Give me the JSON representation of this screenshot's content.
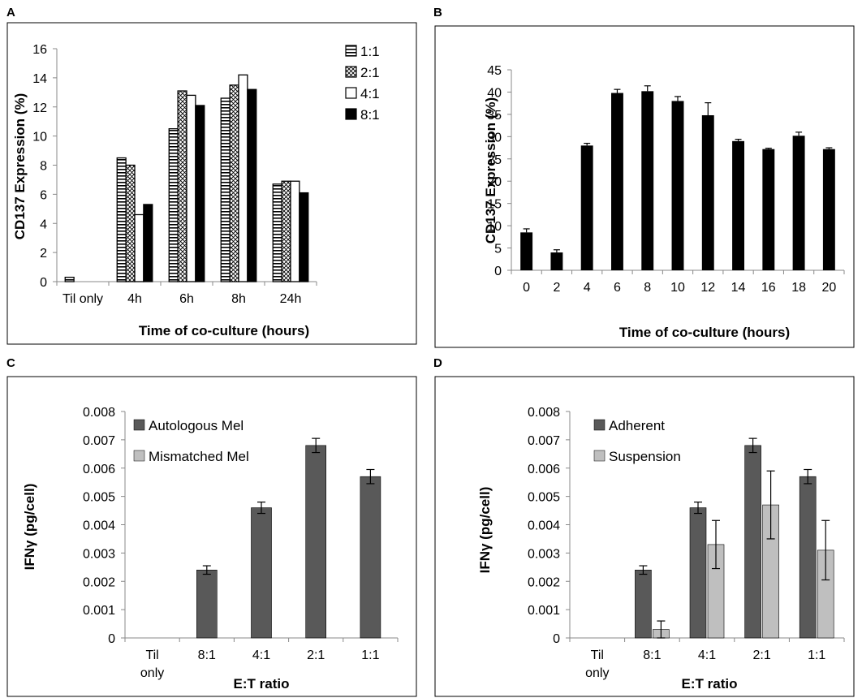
{
  "chart_data": [
    {
      "panel": "A",
      "type": "bar",
      "categories": [
        "Til only",
        "4h",
        "6h",
        "8h",
        "24h"
      ],
      "series": [
        {
          "name": "1:1",
          "values": [
            0.3,
            8.5,
            10.5,
            12.6,
            6.7
          ]
        },
        {
          "name": "2:1",
          "values": [
            null,
            8.0,
            13.1,
            13.5,
            6.9
          ]
        },
        {
          "name": "4:1",
          "values": [
            null,
            4.6,
            12.8,
            14.2,
            6.9
          ]
        },
        {
          "name": "8:1",
          "values": [
            null,
            5.3,
            12.1,
            13.2,
            6.1
          ]
        }
      ],
      "ticks": [
        "0",
        "2",
        "4",
        "6",
        "8",
        "10",
        "12",
        "14",
        "16"
      ],
      "xlabel": "Time of co-culture (hours)",
      "ylabel": "CD137 Expression (%)",
      "ylim": [
        0,
        16
      ],
      "legend_position": "top-right"
    },
    {
      "panel": "B",
      "type": "bar",
      "categories": [
        "0",
        "2",
        "4",
        "6",
        "8",
        "10",
        "12",
        "14",
        "16",
        "18",
        "20"
      ],
      "values": [
        8.5,
        4.0,
        28.0,
        39.8,
        40.2,
        38.0,
        34.8,
        29.0,
        27.2,
        30.2,
        27.2
      ],
      "errors": [
        0.8,
        0.6,
        0.5,
        0.8,
        1.2,
        1.0,
        2.8,
        0.4,
        0.2,
        0.8,
        0.3
      ],
      "ticks": [
        "0",
        "5",
        "10",
        "15",
        "20",
        "25",
        "30",
        "35",
        "40",
        "45"
      ],
      "xlabel": "Time of co-culture (hours)",
      "ylabel": "CD137 Expression (%)",
      "ylim": [
        0,
        45
      ]
    },
    {
      "panel": "C",
      "type": "bar",
      "categories": [
        "Til\nonly",
        "8:1",
        "4:1",
        "2:1",
        "1:1"
      ],
      "series": [
        {
          "name": "Autologous Mel",
          "values": [
            0,
            0.0024,
            0.0046,
            0.0068,
            0.0057
          ],
          "errors": [
            0,
            0.00015,
            0.0002,
            0.00025,
            0.00025
          ]
        },
        {
          "name": "Mismatched Mel",
          "values": [
            0,
            0,
            0,
            0,
            0
          ],
          "errors": [
            0,
            0,
            0,
            0,
            0
          ]
        }
      ],
      "ticks": [
        "0",
        "0.001",
        "0.002",
        "0.003",
        "0.004",
        "0.005",
        "0.006",
        "0.007",
        "0.008"
      ],
      "xlabel": "E:T ratio",
      "ylabel": "IFNγ (pg/cell)",
      "ylim": [
        0,
        0.008
      ],
      "legend_position": "top-left"
    },
    {
      "panel": "D",
      "type": "bar",
      "categories": [
        "Til\nonly",
        "8:1",
        "4:1",
        "2:1",
        "1:1"
      ],
      "series": [
        {
          "name": "Adherent",
          "values": [
            0,
            0.0024,
            0.0046,
            0.0068,
            0.0057
          ],
          "errors": [
            0,
            0.00015,
            0.0002,
            0.00025,
            0.00025
          ]
        },
        {
          "name": "Suspension",
          "values": [
            0,
            0.0003,
            0.0033,
            0.0047,
            0.0031
          ],
          "errors": [
            0,
            0.0003,
            0.00085,
            0.0012,
            0.00105
          ]
        }
      ],
      "ticks": [
        "0",
        "0.001",
        "0.002",
        "0.003",
        "0.004",
        "0.005",
        "0.006",
        "0.007",
        "0.008"
      ],
      "xlabel": "E:T ratio",
      "ylabel": "IFNγ (pg/cell)",
      "ylim": [
        0,
        0.008
      ],
      "legend_position": "top-left"
    }
  ],
  "colors": {
    "black": "#000000",
    "dark_gray": "#595959",
    "light_gray": "#bfbfbf"
  }
}
